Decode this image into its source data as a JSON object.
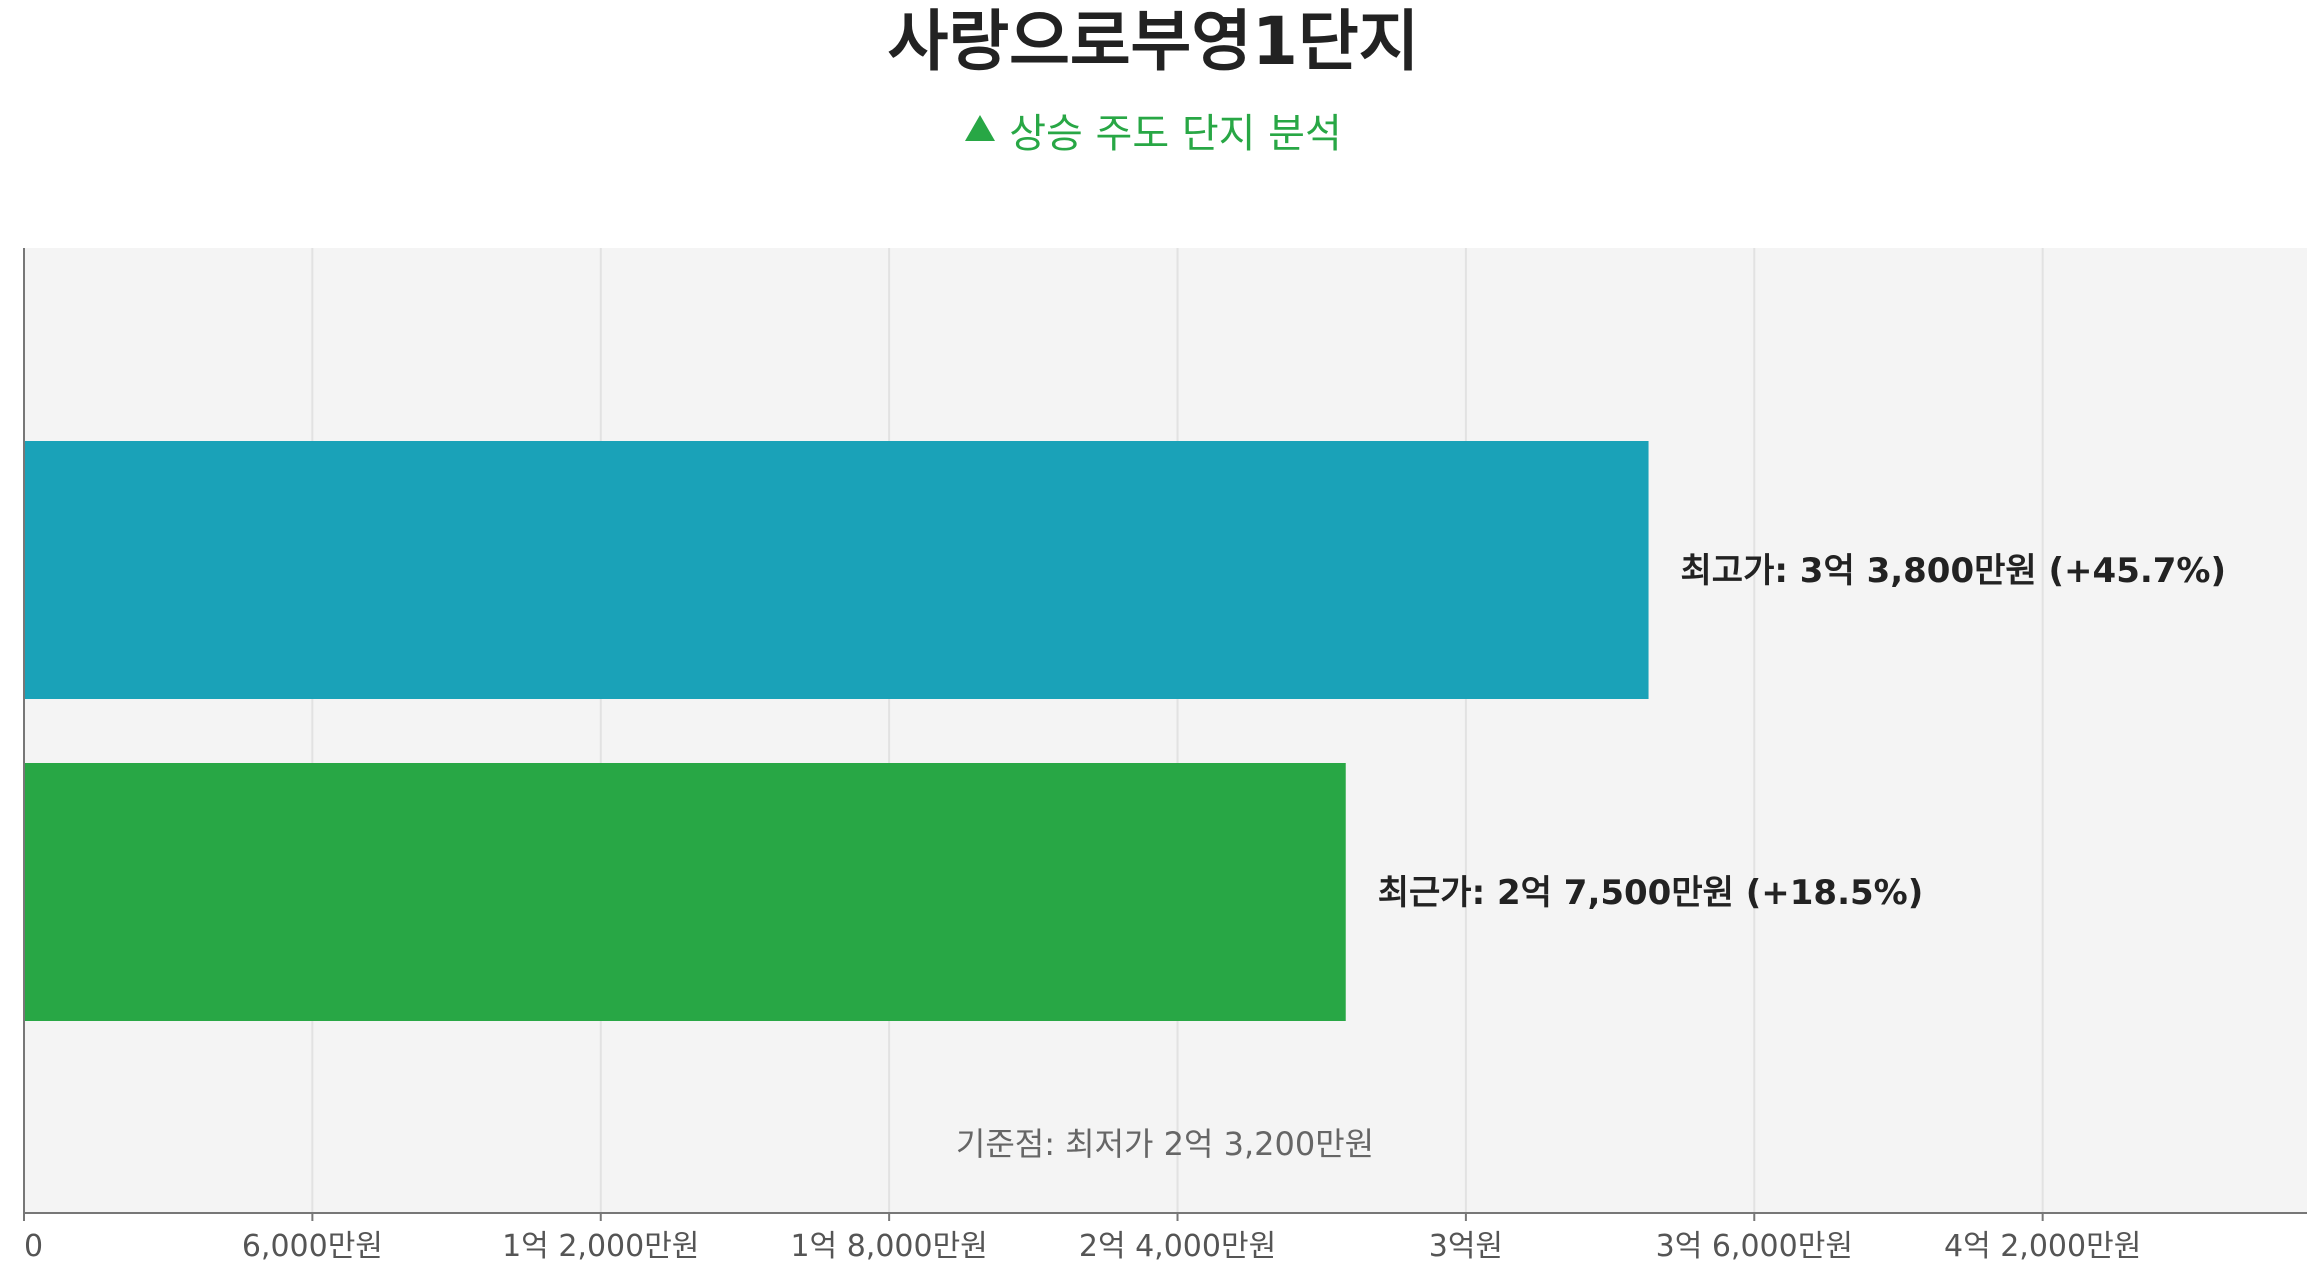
{
  "title": "사랑으로부영1단지",
  "subtitle": {
    "icon": "triangle-up-icon",
    "text": "상승 주도 단지 분석",
    "color": "#28a745"
  },
  "chart_data": {
    "type": "bar",
    "orientation": "horizontal",
    "categories": [
      "최고가",
      "최근가"
    ],
    "values": [
      338000000,
      275000000
    ],
    "colors": [
      "#1aa2b8",
      "#28a745"
    ],
    "data_labels": [
      "최고가: 3억 3,800만원 (+45.7%)",
      "최근가: 2억 7,500만원 (+18.5%)"
    ],
    "xlim": [
      0,
      475000000
    ],
    "x_ticks": [
      0,
      60000000,
      120000000,
      180000000,
      240000000,
      300000000,
      360000000,
      420000000
    ],
    "x_tick_labels": [
      "0",
      "6,000만원",
      "1억 2,000만원",
      "1억 8,000만원",
      "2억 4,000만원",
      "3억원",
      "3억 6,000만원",
      "4억 2,000만원"
    ],
    "grid": true,
    "background": "#f4f4f4",
    "annotation": "기준점: 최저가 2억 3,200만원"
  }
}
